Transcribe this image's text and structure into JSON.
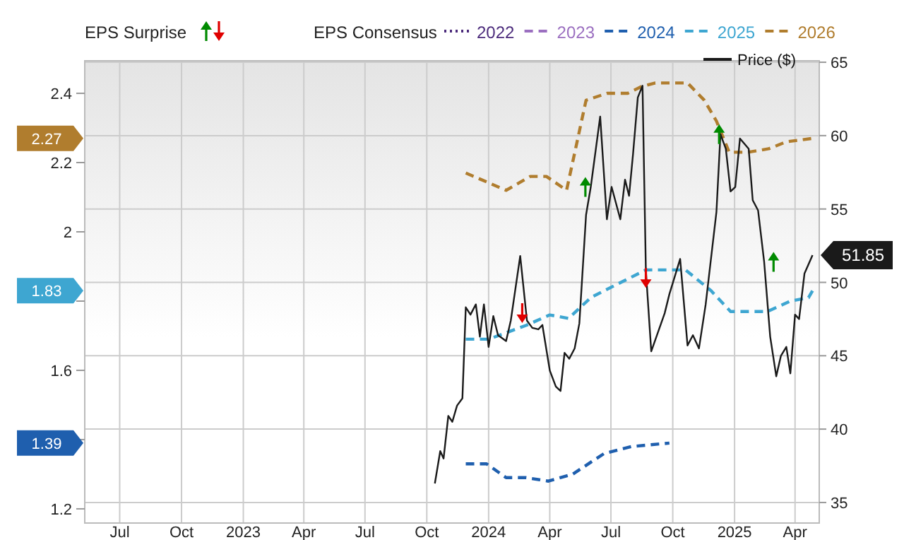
{
  "chart_data": {
    "type": "line",
    "annotations": [
      "EPS Surprise",
      "1.39",
      "1.83",
      "2.27"
    ],
    "legend_title": "EPS Consensus",
    "legend": "top",
    "grid": true,
    "xlim": [
      "2022-05-10",
      "2025-05-07"
    ],
    "xticks": [
      {
        "value": "2022-07-01",
        "label": "Jul"
      },
      {
        "value": "2022-10-01",
        "label": "Oct"
      },
      {
        "value": "2023-01-01",
        "label": "2023"
      },
      {
        "value": "2023-04-01",
        "label": "Apr"
      },
      {
        "value": "2023-07-01",
        "label": "Jul"
      },
      {
        "value": "2023-10-01",
        "label": "Oct"
      },
      {
        "value": "2024-01-01",
        "label": "2024"
      },
      {
        "value": "2024-04-01",
        "label": "Apr"
      },
      {
        "value": "2024-07-01",
        "label": "Jul"
      },
      {
        "value": "2024-10-01",
        "label": "Oct"
      },
      {
        "value": "2025-01-01",
        "label": "2025"
      },
      {
        "value": "2025-04-01",
        "label": "Apr"
      }
    ],
    "ylim": [
      1.159,
      2.494
    ],
    "yticks": [
      1.2,
      {
        "value": 1.4,
        "label": null
      },
      1.6,
      {
        "value": 1.8,
        "label": null
      },
      2,
      2.2,
      2.4
    ],
    "y2lim": [
      33.6,
      65.1
    ],
    "y2ticks": [
      35,
      40,
      45,
      50,
      55,
      60,
      65
    ],
    "series": [
      {
        "name": "2022",
        "color": "#4b2a7b",
        "line_style": "dotted"
      },
      {
        "name": "2023",
        "color": "#9b6fc0",
        "line_style": "dashed"
      },
      {
        "name": "2024",
        "color": "#1f5fae",
        "line_style": "dashed",
        "x": [
          "2023-11-28",
          "2023-12-29",
          "2024-01-27",
          "2024-02-26",
          "2024-03-30",
          "2024-05-05",
          "2024-06-21",
          "2024-08-01",
          "2024-09-26"
        ],
        "values": [
          1.33,
          1.33,
          1.29,
          1.29,
          1.28,
          1.3,
          1.36,
          1.38,
          1.39
        ]
      },
      {
        "name": "2025",
        "color": "#3ea6d1",
        "line_style": "dashed",
        "x": [
          "2023-11-28",
          "2024-01-01",
          "2024-02-26",
          "2024-04-01",
          "2024-04-29",
          "2024-06-01",
          "2024-06-21",
          "2024-08-22",
          "2024-09-19",
          "2024-10-20",
          "2024-11-27",
          "2024-12-26",
          "2025-02-19",
          "2025-03-25",
          "2025-04-21",
          "2025-04-27"
        ],
        "values": [
          1.69,
          1.69,
          1.73,
          1.76,
          1.75,
          1.81,
          1.83,
          1.89,
          1.89,
          1.89,
          1.83,
          1.77,
          1.77,
          1.8,
          1.81,
          1.83
        ]
      },
      {
        "name": "2026",
        "color": "#b07d2e",
        "line_style": "dashed",
        "x": [
          "2023-11-28",
          "2024-01-27",
          "2024-03-03",
          "2024-03-27",
          "2024-04-26",
          "2024-05-25",
          "2024-06-25",
          "2024-07-26",
          "2024-08-16",
          "2024-09-05",
          "2024-10-23",
          "2024-11-17",
          "2024-12-05",
          "2024-12-24",
          "2025-01-21",
          "2025-02-21",
          "2025-03-19",
          "2025-04-27"
        ],
        "values": [
          2.17,
          2.12,
          2.16,
          2.16,
          2.12,
          2.38,
          2.4,
          2.4,
          2.42,
          2.43,
          2.43,
          2.38,
          2.32,
          2.23,
          2.23,
          2.24,
          2.26,
          2.27
        ]
      },
      {
        "name": "Price ($)",
        "color": "#1a1a1a",
        "axis": "y2",
        "line_style": "solid",
        "x": [
          "2023-10-13",
          "2023-10-21",
          "2023-10-26",
          "2023-11-02",
          "2023-11-08",
          "2023-11-15",
          "2023-11-23",
          "2023-11-28",
          "2023-12-05",
          "2023-12-13",
          "2023-12-19",
          "2023-12-25",
          "2024-01-01",
          "2024-01-08",
          "2024-01-15",
          "2024-01-27",
          "2024-02-03",
          "2024-02-17",
          "2024-02-27",
          "2024-03-06",
          "2024-03-15",
          "2024-03-21",
          "2024-04-01",
          "2024-04-10",
          "2024-04-17",
          "2024-04-23",
          "2024-04-30",
          "2024-05-08",
          "2024-05-15",
          "2024-05-25",
          "2024-06-01",
          "2024-06-15",
          "2024-06-25",
          "2024-07-02",
          "2024-07-15",
          "2024-07-22",
          "2024-07-28",
          "2024-08-03",
          "2024-08-10",
          "2024-08-17",
          "2024-08-22",
          "2024-08-30",
          "2024-09-09",
          "2024-09-19",
          "2024-09-26",
          "2024-10-12",
          "2024-10-23",
          "2024-10-31",
          "2024-11-09",
          "2024-11-19",
          "2024-12-05",
          "2024-12-11",
          "2024-12-19",
          "2024-12-26",
          "2025-01-02",
          "2025-01-09",
          "2025-01-22",
          "2025-01-28",
          "2025-02-05",
          "2025-02-14",
          "2025-02-23",
          "2025-03-04",
          "2025-03-11",
          "2025-03-19",
          "2025-03-25",
          "2025-04-01",
          "2025-04-07",
          "2025-04-15",
          "2025-04-27"
        ],
        "values": [
          36.3,
          38.5,
          38,
          40.9,
          40.5,
          41.6,
          42.1,
          48.3,
          47.8,
          48.5,
          46.3,
          48.5,
          45.6,
          47.7,
          46.4,
          46,
          47.4,
          51.8,
          47.4,
          46.9,
          46.8,
          47.1,
          44,
          42.9,
          42.6,
          45.2,
          44.8,
          45.5,
          47.2,
          54.6,
          56.5,
          61.3,
          54.3,
          56.5,
          54.3,
          57,
          55.9,
          58.8,
          62.6,
          63.4,
          50.8,
          45.3,
          46.6,
          47.9,
          49.2,
          51.6,
          45.7,
          46.4,
          45.5,
          48.5,
          54.8,
          60.1,
          59.1,
          56.2,
          56.5,
          59.8,
          59.1,
          55.6,
          54.9,
          51.4,
          46.3,
          43.6,
          45,
          45.6,
          43.8,
          47.8,
          47.5,
          50.6,
          51.85
        ],
        "value_labels": [
          null,
          null,
          null,
          null,
          null,
          null,
          null,
          null,
          null,
          null,
          null,
          null,
          null,
          null,
          null,
          null,
          null,
          null,
          null,
          null,
          null,
          null,
          null,
          null,
          null,
          null,
          null,
          null,
          null,
          null,
          null,
          null,
          null,
          null,
          null,
          null,
          null,
          null,
          null,
          null,
          null,
          null,
          null,
          null,
          null,
          null,
          null,
          null,
          null,
          null,
          null,
          null,
          null,
          null,
          null,
          null,
          null,
          null,
          null,
          null,
          null,
          null,
          null,
          null,
          null,
          null,
          null,
          null,
          "51.85"
        ]
      },
      {
        "type": "scatter",
        "color": "#008a00",
        "axis": "y2",
        "x": [
          "2024-05-24",
          "2024-12-09",
          "2025-02-28"
        ],
        "values": [
          56.5,
          60.1,
          51.4
        ]
      },
      {
        "type": "scatter",
        "color": "#e00000",
        "axis": "y2",
        "x": [
          "2024-02-20",
          "2024-08-22"
        ],
        "values": [
          47.9,
          50.3
        ]
      }
    ]
  }
}
